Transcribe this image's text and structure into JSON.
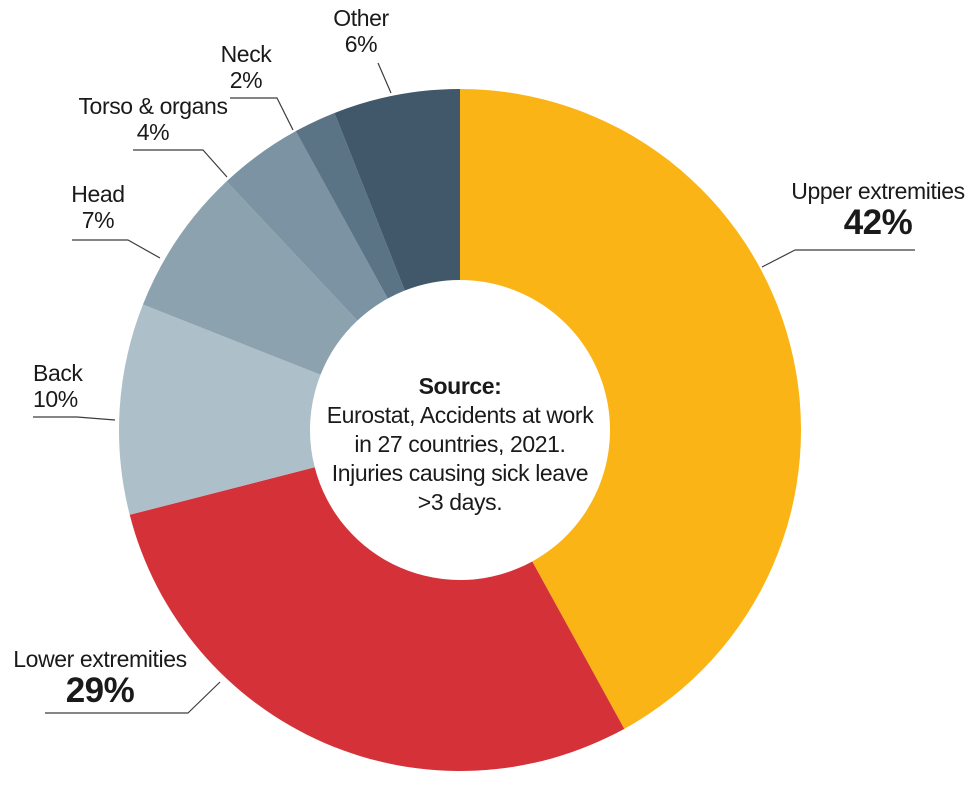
{
  "chart_data": {
    "type": "pie",
    "variant": "donut",
    "title": "",
    "unit": "%",
    "direction": "clockwise",
    "start_angle_deg": 0,
    "categories": [
      "Upper extremities",
      "Lower extremities",
      "Back",
      "Head",
      "Torso & organs",
      "Neck",
      "Other"
    ],
    "values": [
      42,
      29,
      10,
      7,
      4,
      2,
      6
    ],
    "slices": [
      {
        "label": "Upper extremities",
        "value": 42,
        "pct": "42%",
        "color": "#FBB415"
      },
      {
        "label": "Lower extremities",
        "value": 29,
        "pct": "29%",
        "color": "#D43238"
      },
      {
        "label": "Back",
        "value": 10,
        "pct": "10%",
        "color": "#ADBFC9"
      },
      {
        "label": "Head",
        "value": 7,
        "pct": "7%",
        "color": "#8DA2AF"
      },
      {
        "label": "Torso & organs",
        "value": 4,
        "pct": "4%",
        "color": "#7B93A2"
      },
      {
        "label": "Neck",
        "value": 2,
        "pct": "2%",
        "color": "#5B7485"
      },
      {
        "label": "Other",
        "value": 6,
        "pct": "6%",
        "color": "#41586A"
      }
    ],
    "center_note": {
      "heading": "Source:",
      "lines": [
        "Eurostat, Accidents at work",
        "in 27 countries, 2021.",
        "Injuries causing sick leave",
        ">3 days."
      ]
    },
    "legend_position": "callouts",
    "grid": false
  }
}
